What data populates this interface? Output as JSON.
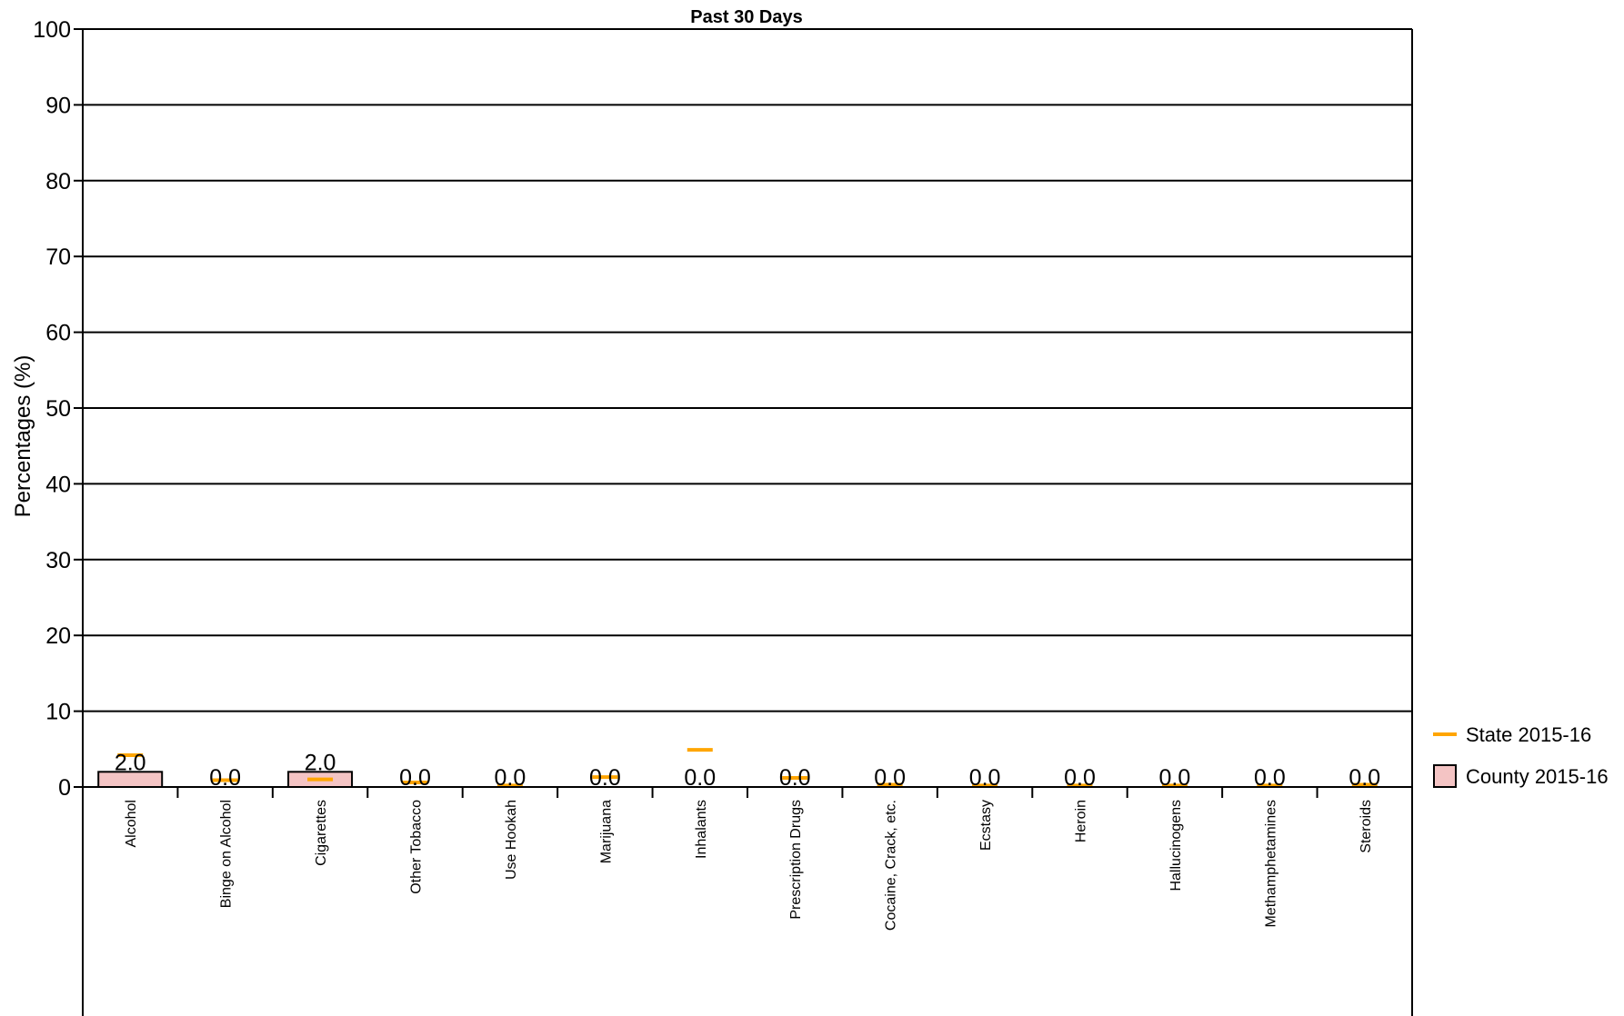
{
  "chart_data": {
    "type": "bar",
    "title": "Past 30 Days",
    "xlabel": "",
    "ylabel": "Percentages (%)",
    "ylim": [
      0,
      100
    ],
    "yticks": [
      0,
      10,
      20,
      30,
      40,
      50,
      60,
      70,
      80,
      90,
      100
    ],
    "grid": true,
    "legend_position": "right",
    "categories": [
      "Alcohol",
      "Binge on Alcohol",
      "Cigarettes",
      "Other Tobacco",
      "Use Hookah",
      "Marijuana",
      "Inhalants",
      "Prescription Drugs",
      "Cocaine, Crack, etc.",
      "Ecstasy",
      "Heroin",
      "Hallucinogens",
      "Methamphetamines",
      "Steroids"
    ],
    "series": [
      {
        "name": "County 2015-16",
        "kind": "bar",
        "color": "#f4c4c4",
        "values": [
          2.0,
          0.0,
          2.0,
          0.0,
          0.0,
          0.0,
          0.0,
          0.0,
          0.0,
          0.0,
          0.0,
          0.0,
          0.0,
          0.0
        ],
        "labels": [
          "2.0",
          "0.0",
          "2.0",
          "0.0",
          "0.0",
          "0.0",
          "0.0",
          "0.0",
          "0.0",
          "0.0",
          "0.0",
          "0.0",
          "0.0",
          "0.0"
        ]
      },
      {
        "name": "State 2015-16",
        "kind": "marker",
        "color": "#ffa500",
        "values": [
          4.2,
          0.9,
          1.0,
          0.6,
          0.2,
          1.3,
          4.9,
          1.2,
          0.3,
          0.2,
          0.2,
          0.2,
          0.2,
          0.3
        ]
      }
    ]
  }
}
